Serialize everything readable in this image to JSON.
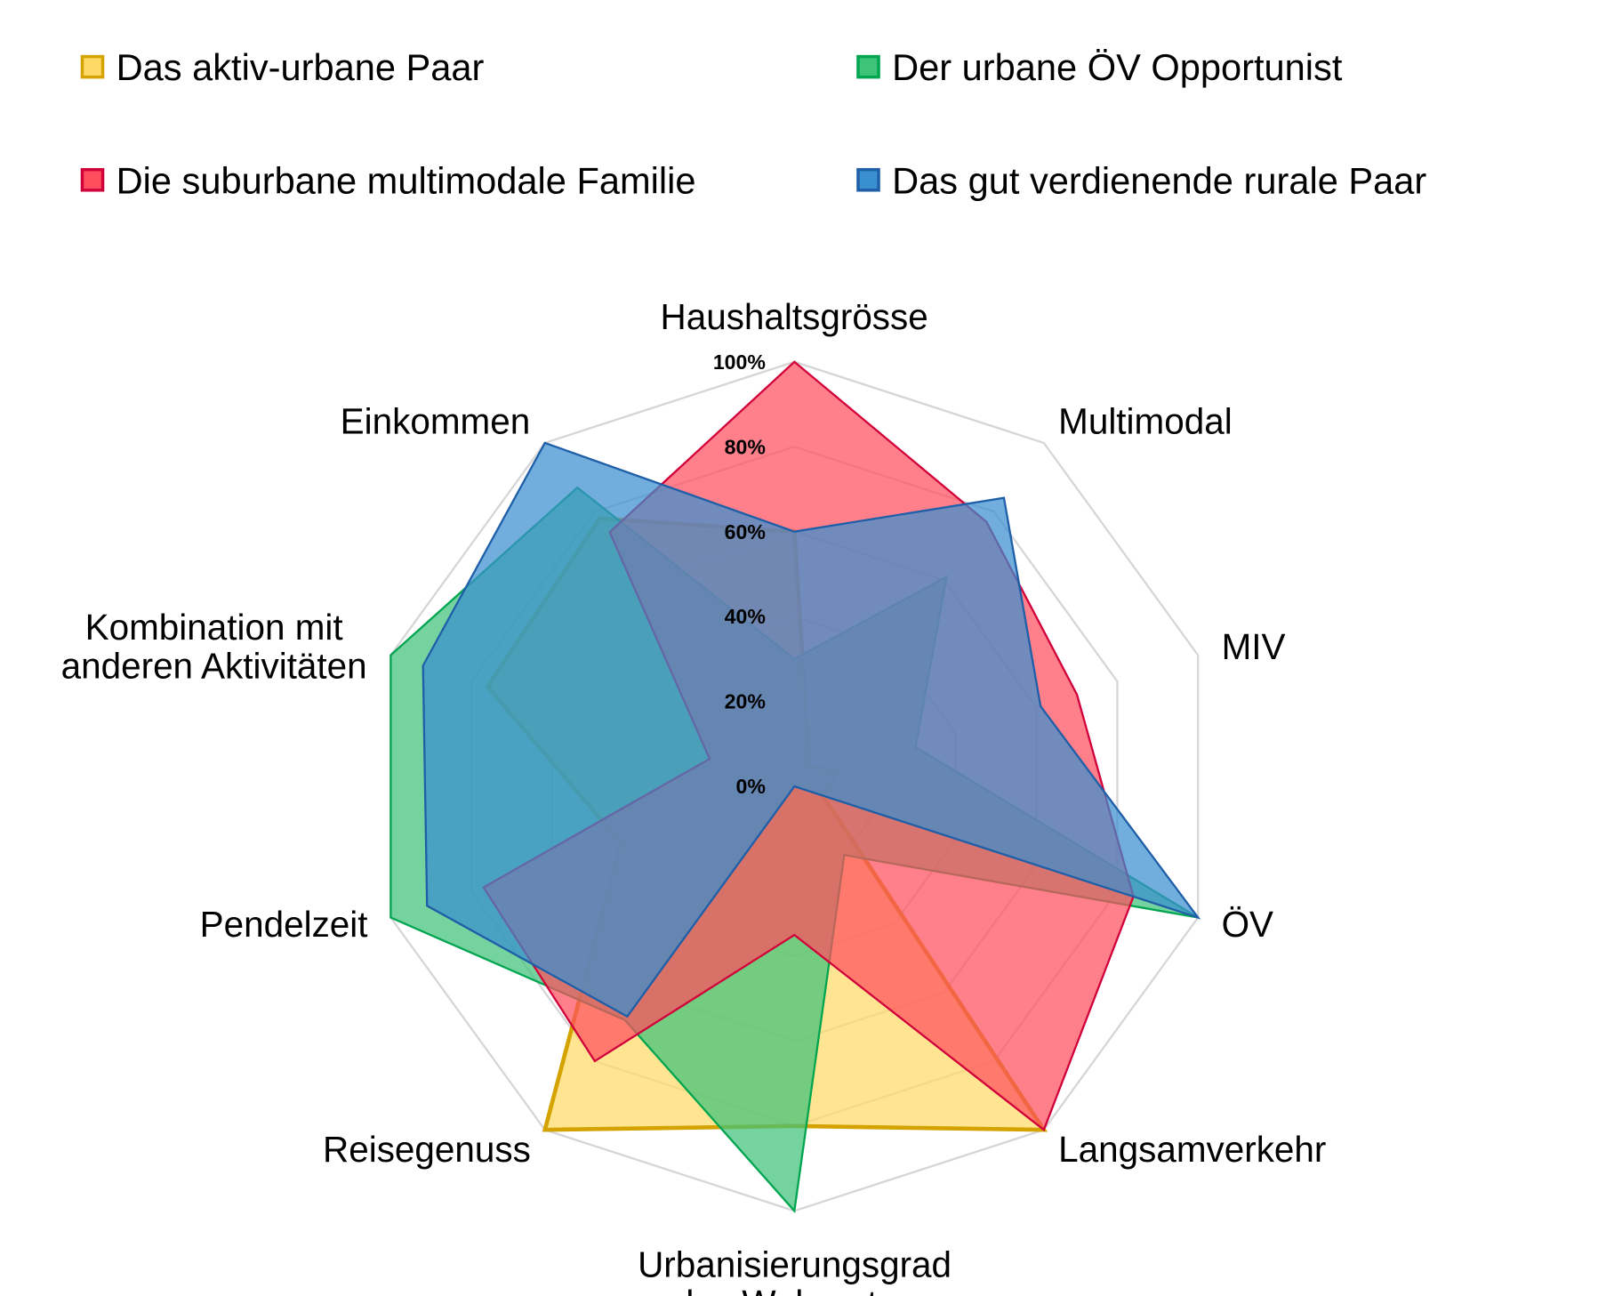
{
  "chart_data": {
    "type": "radar",
    "categories": [
      "Haushaltsgrösse",
      "Multimodal",
      "MIV",
      "ÖV",
      "Langsamverkehr",
      "Urbanisierungsgrad\ndes Wohnortes",
      "Reisegenuss",
      "Pendelzeit",
      "Kombination mit\nanderen Aktivitäten",
      "Einkommen"
    ],
    "series": [
      {
        "name": "Das aktiv-urbane Paar",
        "color": "#ffd966",
        "stroke": "#d4a300",
        "values": [
          60,
          6,
          11,
          7,
          100,
          80,
          100,
          43,
          76,
          78
        ]
      },
      {
        "name": "Der urbane ÖV Opportunist",
        "color": "#3fc27a",
        "stroke": "#00a550",
        "values": [
          30,
          61,
          30,
          100,
          20,
          100,
          68,
          100,
          100,
          87
        ]
      },
      {
        "name": "Die suburbane multimodale Familie",
        "color": "#ff4f5e",
        "stroke": "#d1003b",
        "values": [
          100,
          77,
          70,
          84,
          100,
          35,
          80,
          77,
          21,
          74
        ]
      },
      {
        "name": "Das gut verdienende rurale Paar",
        "color": "#3a8fd0",
        "stroke": "#1f5fa8",
        "values": [
          60,
          84,
          61,
          100,
          0,
          0,
          67,
          91,
          92,
          100
        ]
      }
    ],
    "rlim": [
      0,
      100
    ],
    "rticks": [
      {
        "value": 0,
        "label": "0%"
      },
      {
        "value": 20,
        "label": "20%"
      },
      {
        "value": 40,
        "label": "40%"
      },
      {
        "value": 60,
        "label": "60%"
      },
      {
        "value": 80,
        "label": "80%"
      },
      {
        "value": 100,
        "label": "100%"
      }
    ],
    "grid": true,
    "legend": "top"
  }
}
